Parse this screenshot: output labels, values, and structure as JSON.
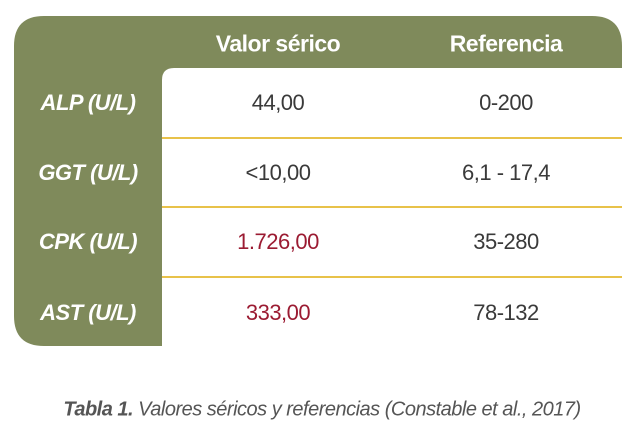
{
  "header": {
    "columns": [
      "Valor sérico",
      "Referencia"
    ]
  },
  "table": {
    "rows": [
      [
        "ALP (U/L)",
        "44,00",
        "0-200"
      ],
      [
        "GGT (U/L)",
        "<10,00",
        "6,1 - 17,4"
      ],
      [
        "CPK (U/L)",
        "1.726,00",
        "35-280"
      ],
      [
        "AST (U/L)",
        "333,00",
        "78-132"
      ]
    ]
  },
  "caption": {
    "label": "Tabla 1.",
    "text": "Valores séricos y referencias (Constable et al., 2017)"
  }
}
